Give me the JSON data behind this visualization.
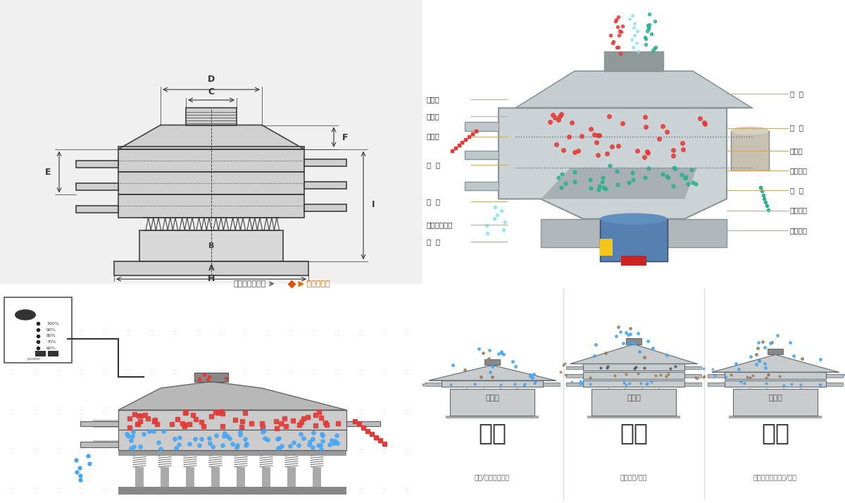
{
  "bg_color": "#ffffff",
  "left_labels": [
    "进料口",
    "防尘盖",
    "出料口",
    "束  环",
    "弹  簧",
    "运输固定螺栓",
    "机  座"
  ],
  "right_labels": [
    "筛  网",
    "网  架",
    "加重块",
    "上部重锤",
    "筛  盘",
    "振动电机",
    "下部重锤"
  ],
  "bottom_categories": [
    "分级",
    "过滤",
    "除杂"
  ],
  "bottom_subtitles": [
    "单层式",
    "三层式",
    "双层式"
  ],
  "bottom_descriptions": [
    "颗粒/粉末准确分级",
    "去除异物/结块",
    "去除液体中的颗粒/异物"
  ],
  "nav_left": "外形尺寸示意图",
  "nav_right": "结构示意图",
  "red_color": "#e53935",
  "blue_color": "#42a5f5",
  "green_color": "#26a69a",
  "cyan_color": "#80deea",
  "gold_color": "#c8a96e",
  "steel_color": "#b0bec5"
}
